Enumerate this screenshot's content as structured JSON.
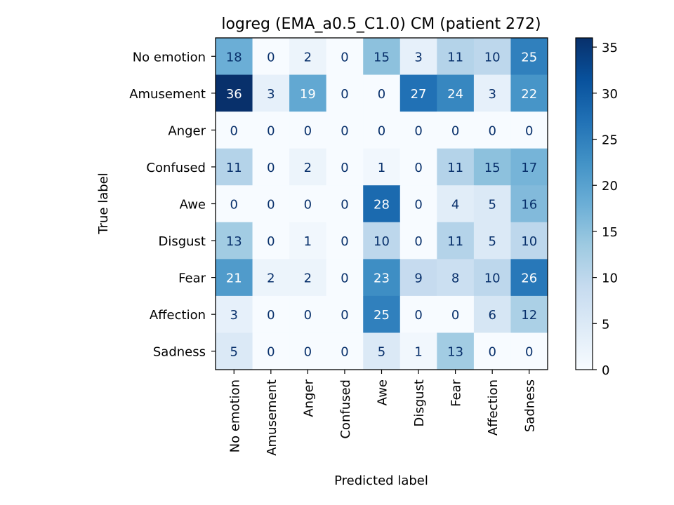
{
  "chart_data": {
    "type": "heatmap",
    "title": "logreg (EMA_a0.5_C1.0) CM (patient 272)",
    "xlabel": "Predicted label",
    "ylabel": "True label",
    "row_labels": [
      "No emotion",
      "Amusement",
      "Anger",
      "Confused",
      "Awe",
      "Disgust",
      "Fear",
      "Affection",
      "Sadness"
    ],
    "col_labels": [
      "No emotion",
      "Amusement",
      "Anger",
      "Confused",
      "Awe",
      "Disgust",
      "Fear",
      "Affection",
      "Sadness"
    ],
    "matrix": [
      [
        18,
        0,
        2,
        0,
        15,
        3,
        11,
        10,
        25
      ],
      [
        36,
        3,
        19,
        0,
        0,
        27,
        24,
        3,
        22
      ],
      [
        0,
        0,
        0,
        0,
        0,
        0,
        0,
        0,
        0
      ],
      [
        11,
        0,
        2,
        0,
        1,
        0,
        11,
        15,
        17
      ],
      [
        0,
        0,
        0,
        0,
        28,
        0,
        4,
        5,
        16
      ],
      [
        13,
        0,
        1,
        0,
        10,
        0,
        11,
        5,
        10
      ],
      [
        21,
        2,
        2,
        0,
        23,
        9,
        8,
        10,
        26
      ],
      [
        3,
        0,
        0,
        0,
        25,
        0,
        0,
        6,
        12
      ],
      [
        5,
        0,
        0,
        0,
        5,
        1,
        13,
        0,
        0
      ]
    ],
    "colormap": "Blues",
    "vmin": 0,
    "vmax": 36,
    "colorbar_ticks": [
      0,
      5,
      10,
      15,
      20,
      25,
      30,
      35
    ],
    "grid": false
  }
}
